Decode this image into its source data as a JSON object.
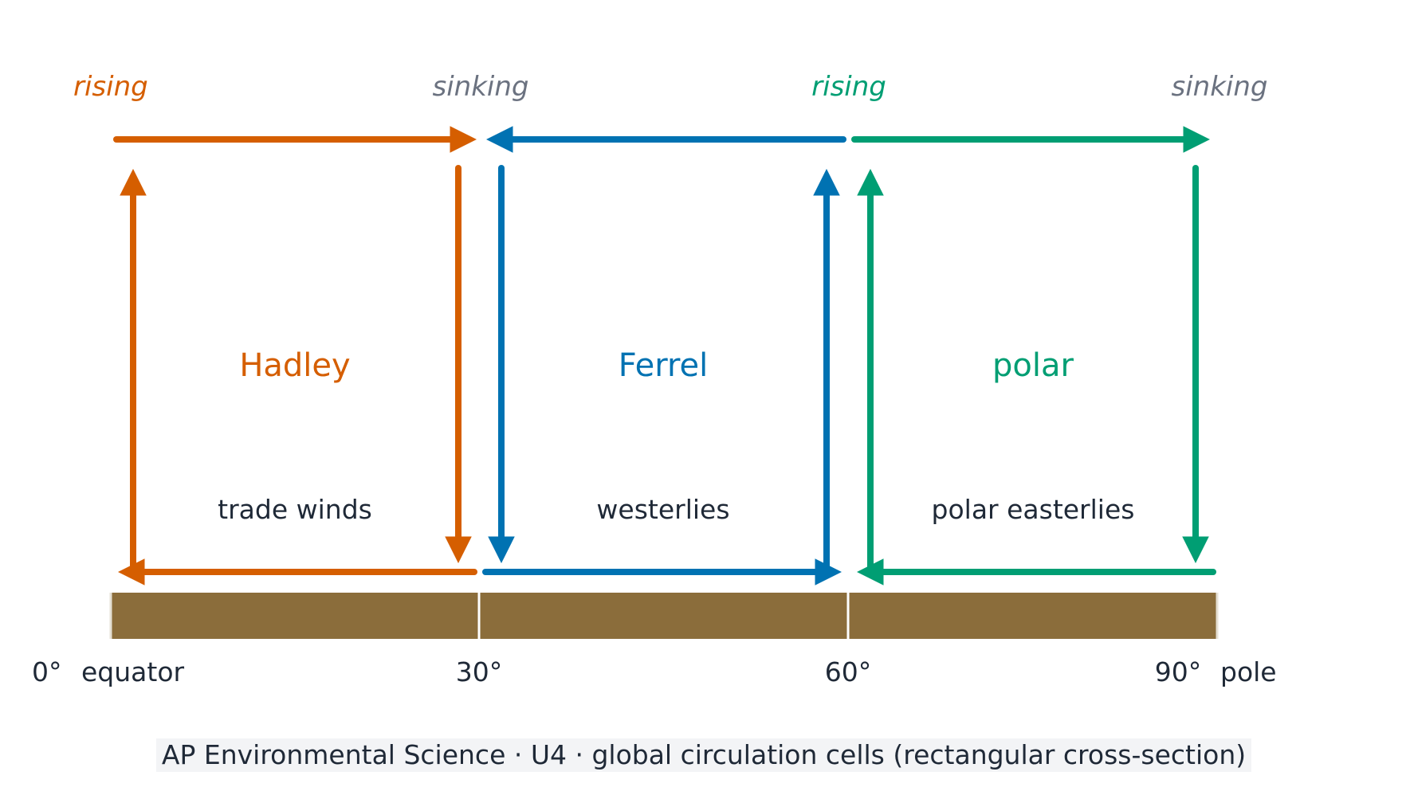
{
  "colors": {
    "hadley": "#d55e00",
    "ferrel": "#0072b2",
    "polar": "#009e73",
    "sinking_label": "#6b7280",
    "text": "#1f2937",
    "ground": "#8b6d3b",
    "caption_bg": "#f3f4f6"
  },
  "top_labels": {
    "rising_equator": "rising",
    "sinking_30": "sinking",
    "rising_60": "rising",
    "sinking_pole": "sinking"
  },
  "cells": {
    "hadley": {
      "name": "Hadley",
      "wind": "trade winds"
    },
    "ferrel": {
      "name": "Ferrel",
      "wind": "westerlies"
    },
    "polar": {
      "name": "polar",
      "wind": "polar easterlies"
    }
  },
  "axis": {
    "lat0": "0°",
    "equator": "equator",
    "lat30": "30°",
    "lat60": "60°",
    "lat90": "90°",
    "pole": "pole"
  },
  "caption": "AP Environmental Science · U4 · global circulation cells (rectangular cross-section)"
}
